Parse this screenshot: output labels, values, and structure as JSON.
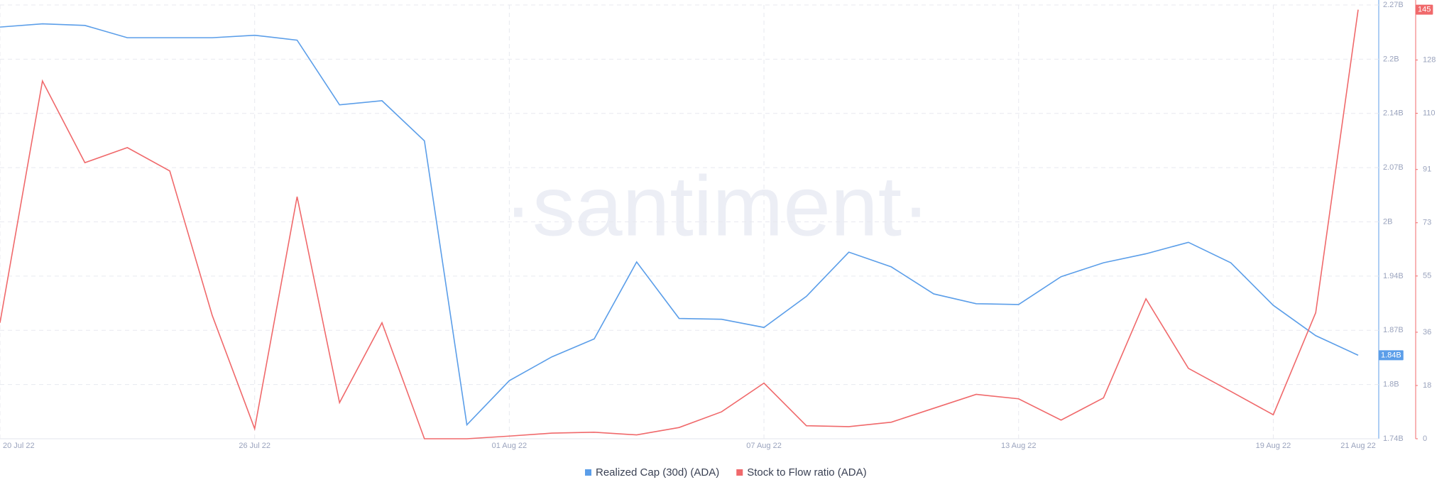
{
  "chart_data": {
    "type": "line",
    "watermark": "·santiment·",
    "categories": [
      "20 Jul 22",
      null,
      null,
      null,
      null,
      null,
      "26 Jul 22",
      null,
      null,
      null,
      null,
      null,
      "01 Aug 22",
      null,
      null,
      null,
      null,
      null,
      "07 Aug 22",
      null,
      null,
      null,
      null,
      null,
      "13 Aug 22",
      null,
      null,
      null,
      null,
      null,
      "19 Aug 22",
      null,
      "21 Aug 22"
    ],
    "series": [
      {
        "name": "Realized Cap (30d) (ADA)",
        "color": "#5b9ee9",
        "axis": "y",
        "values": [
          2243000000,
          2247000000,
          2245000000,
          2230000000,
          2230000000,
          2230000000,
          2233000000,
          2227000000,
          2148000000,
          2153000000,
          2104000000,
          1757000000,
          1811000000,
          1840000000,
          1862000000,
          1956000000,
          1887000000,
          1886000000,
          1876000000,
          1914000000,
          1968000000,
          1950000000,
          1917000000,
          1905000000,
          1904000000,
          1938000000,
          1955000000,
          1966000000,
          1980000000,
          1955000000,
          1903000000,
          1866000000,
          1842000000
        ],
        "value_labels": [
          null,
          null,
          null,
          null,
          null,
          null,
          null,
          null,
          null,
          null,
          null,
          null,
          null,
          null,
          null,
          null,
          null,
          null,
          null,
          null,
          null,
          null,
          null,
          null,
          null,
          null,
          null,
          null,
          null,
          null,
          null,
          null,
          "1.84B"
        ]
      },
      {
        "name": "Stock to Flow ratio (ADA)",
        "color": "#f0696b",
        "axis": "y2",
        "values": [
          39.2,
          120.9,
          93.3,
          98.4,
          90.5,
          41.7,
          3.4,
          81.8,
          12.2,
          39.2,
          0,
          0,
          0.9,
          1.9,
          2.2,
          1.3,
          3.8,
          9.1,
          18.8,
          4.4,
          4.1,
          5.6,
          10.3,
          15.0,
          13.5,
          6.3,
          13.8,
          47.3,
          23.8,
          16.0,
          8.1,
          42.6,
          145
        ]
      }
    ],
    "ylim": [
      1740000000,
      2270000000
    ],
    "yticks": [
      {
        "value": 1740000000,
        "label": "1.74B"
      },
      {
        "value": 1806250000,
        "label": "1.8B"
      },
      {
        "value": 1872500000,
        "label": "1.87B"
      },
      {
        "value": 1938750000,
        "label": "1.94B"
      },
      {
        "value": 2005000000,
        "label": "2B"
      },
      {
        "value": 2071250000,
        "label": "2.07B"
      },
      {
        "value": 2137500000,
        "label": "2.14B"
      },
      {
        "value": 2203750000,
        "label": "2.2B"
      },
      {
        "value": 2270000000,
        "label": "2.27B"
      }
    ],
    "y2lim": [
      0,
      146.6
    ],
    "y2ticks": [
      0,
      18,
      36,
      55,
      73,
      91,
      110,
      128
    ],
    "grid": true,
    "legend": "bottom"
  }
}
